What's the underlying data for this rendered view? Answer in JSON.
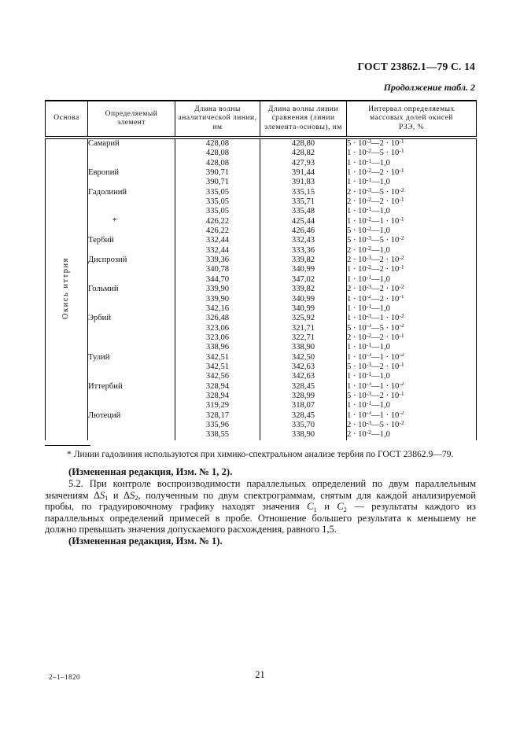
{
  "header": {
    "standard_ref": "ГОСТ 23862.1—79 С. 14",
    "continuation": "Продолжение табл. 2"
  },
  "table": {
    "columns": [
      "Основа",
      "Определяемый\nэлемент",
      "Длина волны\nаналитической линии,\nнм",
      "Длина волны линии\nсравнения (линии\nэлемента-основы), нм",
      "Интервал определяемых\nмассовых долей окисей\nРЗЭ, %"
    ],
    "basis": "Окись иттрия",
    "rows": [
      {
        "element": "Самарий",
        "analytical": "428,08",
        "comparison": "428,80",
        "interval": "5 · 10^-3—2 · 10^-1"
      },
      {
        "element": "",
        "analytical": "428,08",
        "comparison": "428,82",
        "interval": "1 · 10^-2—5 · 10^-1"
      },
      {
        "element": "",
        "analytical": "428,08",
        "comparison": "427,93",
        "interval": "1 · 10^-1—1,0"
      },
      {
        "element": "Европий",
        "analytical": "390,71",
        "comparison": "391,44",
        "interval": "1 · 10^-2—2 · 10^-1"
      },
      {
        "element": "",
        "analytical": "390,71",
        "comparison": "391,83",
        "interval": "1 · 10^-1—1,0"
      },
      {
        "element": "Гадолиний",
        "analytical": "335,05",
        "comparison": "335,15",
        "interval": "2 · 10^-3—5 · 10^-2"
      },
      {
        "element": "",
        "analytical": "335,05",
        "comparison": "335,71",
        "interval": "2 · 10^-2—2 · 10^-1"
      },
      {
        "element": "",
        "analytical": "335,05",
        "comparison": "335,48",
        "interval": "1 · 10^-1—1,0"
      },
      {
        "element": "*",
        "analytical": "426,22",
        "comparison": "425,44",
        "interval": "1 · 10^-2—1 · 10^-1"
      },
      {
        "element": "",
        "analytical": "426,22",
        "comparison": "426,46",
        "interval": "5 · 10^-2—1,0"
      },
      {
        "element": "Тербий",
        "analytical": "332,44",
        "comparison": "332,43",
        "interval": "5 · 10^-3—5 · 10^-2"
      },
      {
        "element": "",
        "analytical": "332,44",
        "comparison": "333,36",
        "interval": "2 · 10^-2—1,0"
      },
      {
        "element": "Диспрозий",
        "analytical": "339,36",
        "comparison": "339,82",
        "interval": "2 · 10^-3—2 · 10^-2"
      },
      {
        "element": "",
        "analytical": "340,78",
        "comparison": "340,99",
        "interval": "1 · 10^-2—2 · 10^-1"
      },
      {
        "element": "",
        "analytical": "344,70",
        "comparison": "347,02",
        "interval": "1 · 10^-1—1,0"
      },
      {
        "element": "Гольмий",
        "analytical": "339,90",
        "comparison": "339,82",
        "interval": "2 · 10^-3—2 · 10^-2"
      },
      {
        "element": "",
        "analytical": "339,90",
        "comparison": "340,99",
        "interval": "1 · 10^-2—2 · 10^-1"
      },
      {
        "element": "",
        "analytical": "342,16",
        "comparison": "340,99",
        "interval": "1 · 10^-1—1,0"
      },
      {
        "element": "Эрбий",
        "analytical": "326,48",
        "comparison": "325,92",
        "interval": "1 · 10^-3—1 · 10^-2"
      },
      {
        "element": "",
        "analytical": "323,06",
        "comparison": "321,71",
        "interval": "5 · 10^-3—5 · 10^-2"
      },
      {
        "element": "",
        "analytical": "323,06",
        "comparison": "322,71",
        "interval": "2 · 10^-2—2 · 10^-1"
      },
      {
        "element": "",
        "analytical": "338,96",
        "comparison": "338,90",
        "interval": "1 · 10^-1—1,0"
      },
      {
        "element": "Тулий",
        "analytical": "342,51",
        "comparison": "342,50",
        "interval": "1 · 10^-3—1 · 10^-2"
      },
      {
        "element": "",
        "analytical": "342,51",
        "comparison": "342,63",
        "interval": "5 · 10^-3—2 · 10^-1"
      },
      {
        "element": "",
        "analytical": "342,56",
        "comparison": "342,63",
        "interval": "1 · 10^-1—1,0"
      },
      {
        "element": "Иттербий",
        "analytical": "328,94",
        "comparison": "328,45",
        "interval": "1 · 10^-3—1 · 10^-2"
      },
      {
        "element": "",
        "analytical": "328,94",
        "comparison": "328,99",
        "interval": "5 · 10^-3—2 · 10^-1"
      },
      {
        "element": "",
        "analytical": "319,29",
        "comparison": "318,07",
        "interval": "1 · 10^-1—1,0"
      },
      {
        "element": "Лютеций",
        "analytical": "328,17",
        "comparison": "328,45",
        "interval": "1 · 10^-3—1 · 10^-2"
      },
      {
        "element": "",
        "analytical": "335,96",
        "comparison": "335,70",
        "interval": "2 · 10^-3—5 · 10^-2"
      },
      {
        "element": "",
        "analytical": "338,55",
        "comparison": "338,90",
        "interval": "2 · 10^-2—1,0"
      }
    ]
  },
  "footnote": {
    "text": "* Линии гадолиния используются при химико-спектральном анализе тербия по ГОСТ 23862.9—79."
  },
  "body": {
    "amendment_1": "(Измененная редакция, Изм. № 1, 2).",
    "para_5_2": "5.2. При контроле воспроизводимости параллельных определений по двум параллельным значениям Δ*S*_1 и Δ*S*_2, полученным по двум спектрограммам, снятым для каждой анализируемой пробы, по градуировочному графику находят значения *С*_1 и *С*_2 — результаты каждого из параллельных определений примесей в пробе. Отношение большего результата к меньшему не должно превышать значения допускаемого расхождения, равного 1,5.",
    "amendment_2": "(Измененная редакция, Изм. № 1)."
  },
  "footer": {
    "imprint": "2–1–1820",
    "page_number": "21"
  }
}
